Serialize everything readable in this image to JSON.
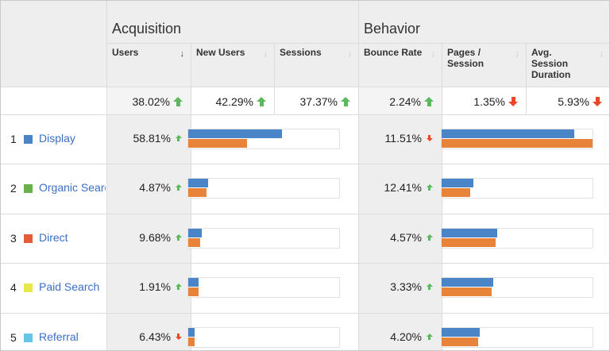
{
  "headers": {
    "acquisition": "Acquisition",
    "behavior": "Behavior",
    "columns": [
      {
        "label": "Users",
        "sort_icon": "sort-arrow-down-icon",
        "active": true
      },
      {
        "label": "New Users",
        "sort_icon": "sort-arrow-down-icon",
        "active": false
      },
      {
        "label": "Sessions",
        "sort_icon": "sort-arrow-down-icon",
        "active": false
      },
      {
        "label": "Bounce Rate",
        "sort_icon": "sort-arrow-down-icon",
        "active": false
      },
      {
        "label": "Pages / Session",
        "sort_icon": "sort-arrow-down-icon",
        "active": false
      },
      {
        "label": "Avg. Session Duration",
        "sort_icon": "sort-arrow-down-icon",
        "active": false
      }
    ]
  },
  "totals": [
    {
      "value": "38.02%",
      "trend": "up"
    },
    {
      "value": "42.29%",
      "trend": "up"
    },
    {
      "value": "37.37%",
      "trend": "up"
    },
    {
      "value": "2.24%",
      "trend": "up"
    },
    {
      "value": "1.35%",
      "trend": "down"
    },
    {
      "value": "5.93%",
      "trend": "down"
    }
  ],
  "colors": {
    "bar_current": "#4a86c7",
    "bar_previous": "#e8833a",
    "trend_up": "#5cb85c",
    "trend_down": "#e8472a",
    "link": "#3a6fc4"
  },
  "rows": [
    {
      "num": "1",
      "channel": "Display",
      "swatch": "#4a86c7",
      "users_pct": "58.81%",
      "users_trend": "up",
      "users_bars": [
        0.62,
        0.39
      ],
      "bounce_pct": "11.51%",
      "bounce_trend": "down",
      "bounce_bars": [
        0.88,
        1.0
      ]
    },
    {
      "num": "2",
      "channel": "Organic Search",
      "swatch": "#6ab04c",
      "users_pct": "4.87%",
      "users_trend": "up",
      "users_bars": [
        0.13,
        0.12
      ],
      "bounce_pct": "12.41%",
      "bounce_trend": "up",
      "bounce_bars": [
        0.21,
        0.19
      ]
    },
    {
      "num": "3",
      "channel": "Direct",
      "swatch": "#e35b3a",
      "users_pct": "9.68%",
      "users_trend": "up",
      "users_bars": [
        0.09,
        0.08
      ],
      "bounce_pct": "4.57%",
      "bounce_trend": "up",
      "bounce_bars": [
        0.37,
        0.36
      ]
    },
    {
      "num": "4",
      "channel": "Paid Search",
      "swatch": "#e8e84a",
      "users_pct": "1.91%",
      "users_trend": "up",
      "users_bars": [
        0.07,
        0.07
      ],
      "bounce_pct": "3.33%",
      "bounce_trend": "up",
      "bounce_bars": [
        0.34,
        0.33
      ]
    },
    {
      "num": "5",
      "channel": "Referral",
      "swatch": "#66c6e8",
      "users_pct": "6.43%",
      "users_trend": "down",
      "users_bars": [
        0.04,
        0.04
      ],
      "bounce_pct": "4.20%",
      "bounce_trend": "up",
      "bounce_bars": [
        0.25,
        0.24
      ]
    }
  ]
}
